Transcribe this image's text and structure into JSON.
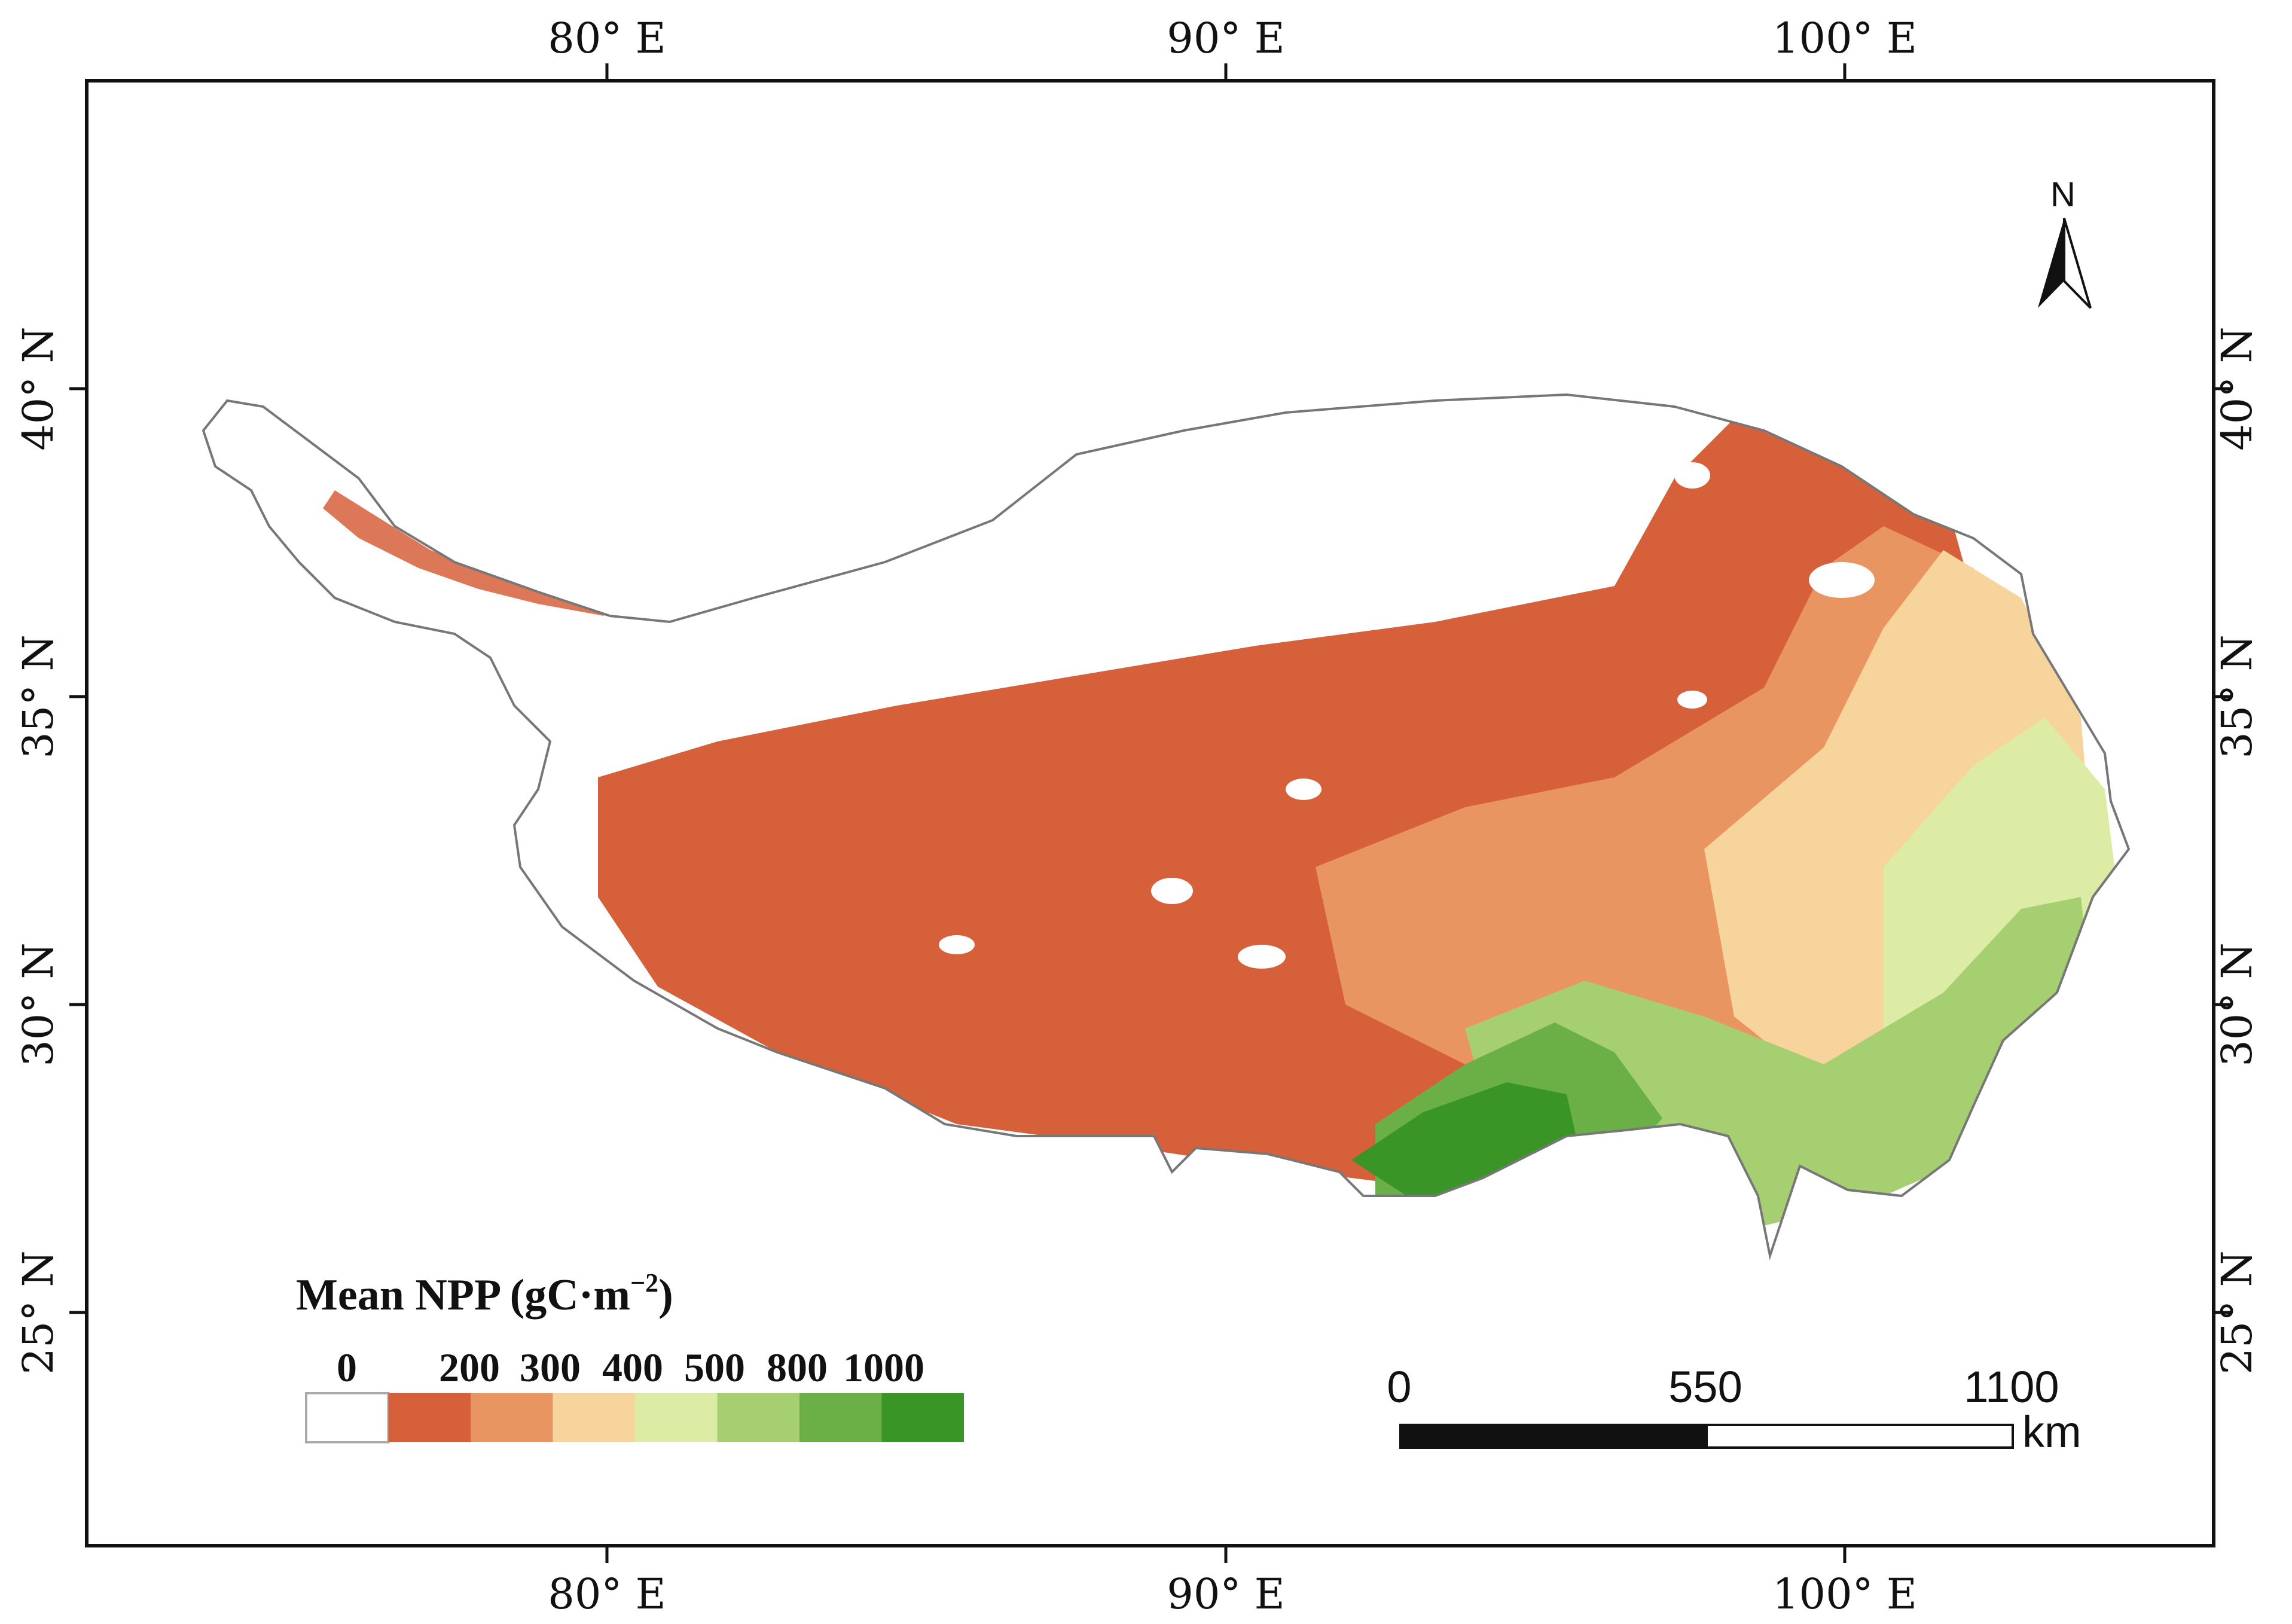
{
  "axes": {
    "lon_labels": [
      "80° E",
      "90° E",
      "100° E"
    ],
    "lat_labels": [
      "40° N",
      "35° N",
      "30° N",
      "25° N"
    ]
  },
  "north_arrow": {
    "letter": "N"
  },
  "legend": {
    "title": "Mean NPP (gC·m",
    "title_sup": "−2",
    "title_close": ")",
    "labels": [
      "0",
      "200",
      "300",
      "400",
      "500",
      "800",
      "1000"
    ],
    "classes": [
      {
        "range": "0",
        "color": "#ffffff"
      },
      {
        "range": "0-200",
        "color": "#d6603a"
      },
      {
        "range": "200-300",
        "color": "#e99562"
      },
      {
        "range": "300-400",
        "color": "#f6d49c"
      },
      {
        "range": "400-500",
        "color": "#ddeca5"
      },
      {
        "range": "500-800",
        "color": "#a5cf70"
      },
      {
        "range": "800-1000",
        "color": "#6ab046"
      },
      {
        "range": "1000+",
        "color": "#3a9527"
      }
    ]
  },
  "scale_bar": {
    "labels": [
      "0",
      "550",
      "1100"
    ],
    "unit": "km"
  }
}
